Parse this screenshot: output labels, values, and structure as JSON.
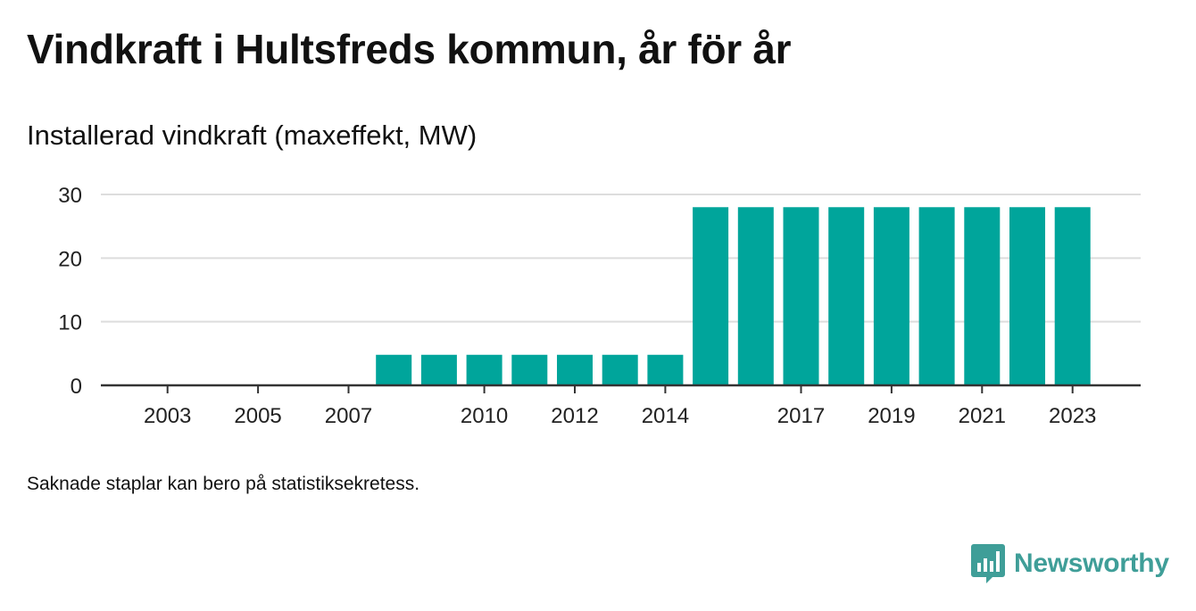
{
  "header": {
    "title": "Vindkraft i Hultsfreds kommun, år för år",
    "subtitle": "Installerad vindkraft (maxeffekt, MW)"
  },
  "footer": {
    "note": "Saknade staplar kan bero på statistiksekretess.",
    "brand": "Newsworthy"
  },
  "colors": {
    "bar": "#00a59b",
    "brand": "#3f9e98",
    "grid": "#dddddd",
    "axis": "#333333"
  },
  "chart_data": {
    "type": "bar",
    "title": "Vindkraft i Hultsfreds kommun, år för år",
    "subtitle": "Installerad vindkraft (maxeffekt, MW)",
    "xlabel": "",
    "ylabel": "",
    "categories": [
      2002,
      2003,
      2004,
      2005,
      2006,
      2007,
      2008,
      2009,
      2010,
      2011,
      2012,
      2013,
      2014,
      2015,
      2016,
      2017,
      2018,
      2019,
      2020,
      2021,
      2022,
      2023
    ],
    "values": [
      null,
      null,
      null,
      null,
      null,
      null,
      4.8,
      4.8,
      4.8,
      4.8,
      4.8,
      4.8,
      4.8,
      28,
      28,
      28,
      28,
      28,
      28,
      28,
      28,
      28
    ],
    "x_tick_labels": [
      "2003",
      "2005",
      "2007",
      "2010",
      "2012",
      "2014",
      "2017",
      "2019",
      "2021",
      "2023"
    ],
    "y_ticks": [
      0,
      10,
      20,
      30
    ],
    "ylim": [
      0,
      30
    ],
    "grid": true,
    "legend": "none"
  }
}
